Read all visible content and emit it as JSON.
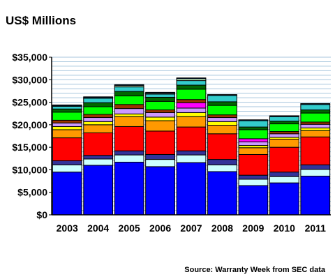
{
  "chart_data": {
    "type": "bar",
    "stacked": true,
    "title": "US$ Millions",
    "source": "Source: Warranty Week from SEC data",
    "categories": [
      "2003",
      "2004",
      "2005",
      "2006",
      "2007",
      "2008",
      "2009",
      "2010",
      "2011"
    ],
    "ylim": [
      0,
      35000
    ],
    "yticks": [
      0,
      5000,
      10000,
      15000,
      20000,
      25000,
      30000,
      35000
    ],
    "ytick_labels": [
      "$0",
      "$5,000",
      "$10,000",
      "$15,000",
      "$20,000",
      "$25,000",
      "$30,000",
      "$35,000"
    ],
    "grid": true,
    "legend": "none",
    "series": [
      {
        "color": "#0000ff",
        "values": [
          9500,
          11000,
          11700,
          10700,
          11600,
          9600,
          6500,
          7100,
          8600
        ]
      },
      {
        "color": "#ccffff",
        "values": [
          1600,
          1400,
          1600,
          1600,
          1700,
          1500,
          1400,
          1400,
          1500
        ]
      },
      {
        "color": "#333399",
        "values": [
          900,
          800,
          900,
          1100,
          900,
          1200,
          900,
          1000,
          1000
        ]
      },
      {
        "color": "#ff0000",
        "values": [
          5100,
          5000,
          5400,
          5200,
          5300,
          5700,
          4600,
          5500,
          6200
        ]
      },
      {
        "color": "#ff9900",
        "values": [
          1800,
          1800,
          2200,
          2300,
          2300,
          1900,
          1500,
          1800,
          1400
        ]
      },
      {
        "color": "#ffff00",
        "values": [
          700,
          700,
          600,
          800,
          900,
          800,
          500,
          400,
          600
        ]
      },
      {
        "color": "#cc99ff",
        "values": [
          800,
          900,
          1200,
          1000,
          1000,
          900,
          800,
          800,
          800
        ]
      },
      {
        "color": "#ff00ff",
        "values": [
          0,
          0,
          0,
          0,
          1200,
          0,
          700,
          0,
          0
        ]
      },
      {
        "color": "#993300",
        "values": [
          600,
          700,
          900,
          600,
          700,
          600,
          0,
          500,
          500
        ]
      },
      {
        "color": "#00ff00",
        "values": [
          1800,
          1700,
          1900,
          1900,
          2300,
          2100,
          2000,
          1700,
          2000
        ]
      },
      {
        "color": "#006600",
        "values": [
          700,
          900,
          1000,
          900,
          900,
          800,
          600,
          600,
          700
        ]
      },
      {
        "color": "#33cccc",
        "values": [
          600,
          1000,
          1000,
          700,
          1000,
          1400,
          1400,
          1000,
          1200
        ]
      },
      {
        "color": "#ccffcc",
        "values": [
          100,
          100,
          300,
          200,
          400,
          0,
          0,
          0,
          0
        ]
      },
      {
        "color": "#003366",
        "values": [
          200,
          200,
          200,
          200,
          200,
          200,
          200,
          200,
          200
        ]
      }
    ]
  }
}
